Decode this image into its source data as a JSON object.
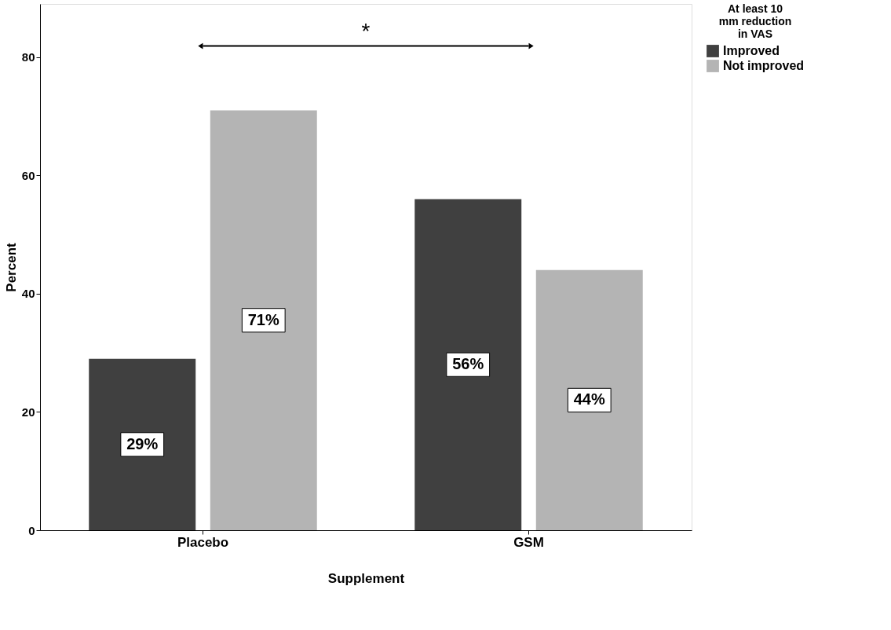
{
  "chart_data": {
    "type": "bar",
    "xlabel": "Supplement",
    "ylabel": "Percent",
    "legend_title": "At least 10 mm reduction in VAS",
    "categories": [
      "Placebo",
      "GSM"
    ],
    "series": [
      {
        "name": "Improved",
        "color": "#404040",
        "values": [
          29,
          56
        ],
        "value_labels": [
          "29%",
          "56%"
        ]
      },
      {
        "name": "Not improved",
        "color": "#b4b4b4",
        "values": [
          71,
          44
        ],
        "value_labels": [
          "71%",
          "44%"
        ]
      }
    ],
    "ylim": [
      0,
      89
    ],
    "yticks": [
      0,
      20,
      40,
      60,
      80
    ],
    "grid": false,
    "legend": "top right",
    "annotations": [
      "*"
    ]
  }
}
